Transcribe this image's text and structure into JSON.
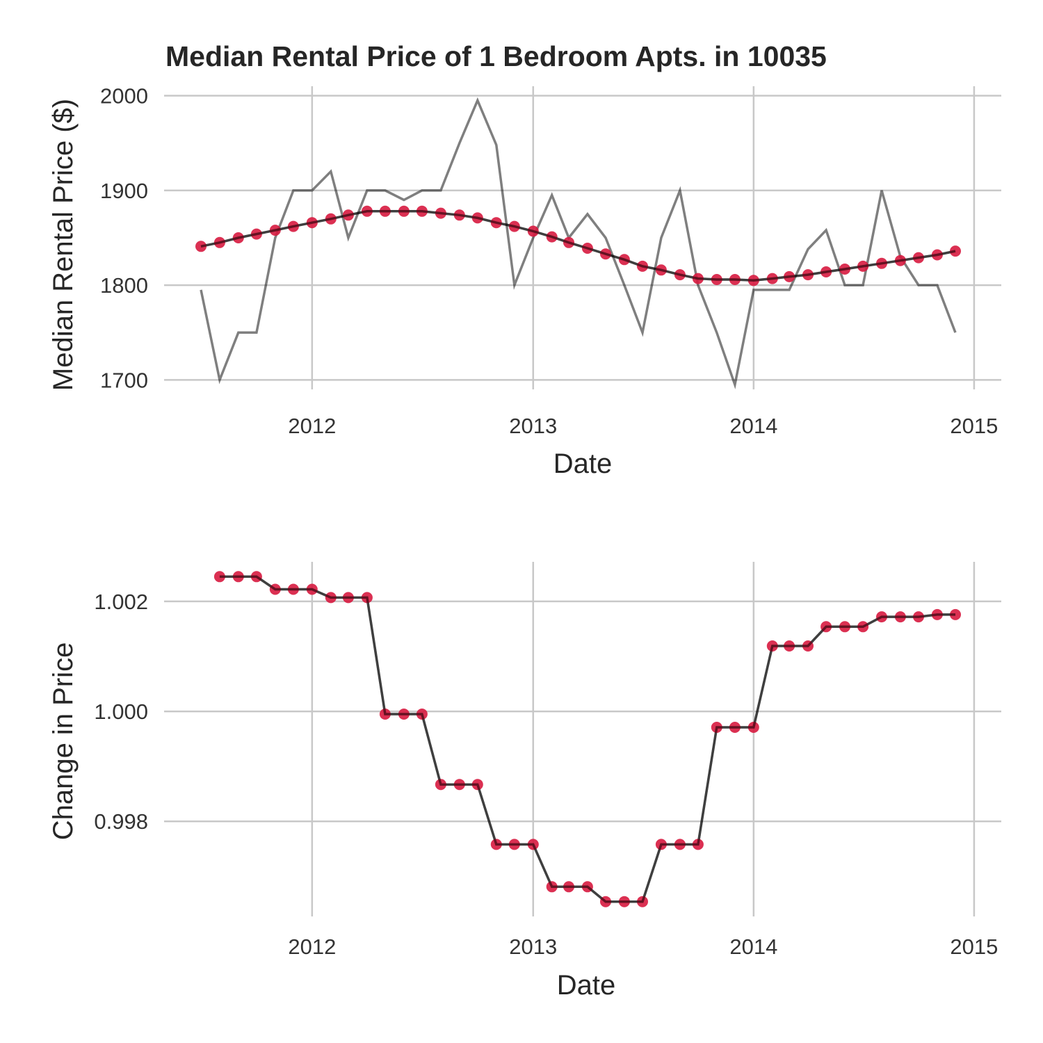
{
  "chart_data": [
    {
      "type": "line",
      "title": "Median Rental Price of 1 Bedroom Apts. in 10035",
      "xlabel": "Date",
      "ylabel": "Median Rental Price ($)",
      "x_ticks": [
        "2012",
        "2013",
        "2014",
        "2015"
      ],
      "y_ticks": [
        "1700",
        "1800",
        "1900",
        "2000"
      ],
      "xlim": [
        "2011-05-01",
        "2015-02-15"
      ],
      "ylim": [
        1690,
        2010
      ],
      "grid": true,
      "legend": "none",
      "series": [
        {
          "style": "line",
          "color": "#7f7f7f",
          "x": [
            "2011-07-01",
            "2011-08-01",
            "2011-09-01",
            "2011-10-01",
            "2011-11-01",
            "2011-12-01",
            "2012-01-01",
            "2012-02-01",
            "2012-03-01",
            "2012-04-01",
            "2012-05-01",
            "2012-06-01",
            "2012-07-01",
            "2012-08-01",
            "2012-09-01",
            "2012-10-01",
            "2012-11-01",
            "2012-12-01",
            "2013-01-01",
            "2013-02-01",
            "2013-03-01",
            "2013-04-01",
            "2013-05-01",
            "2013-06-01",
            "2013-07-01",
            "2013-08-01",
            "2013-09-01",
            "2013-10-01",
            "2013-11-01",
            "2013-12-01",
            "2014-01-01",
            "2014-02-01",
            "2014-03-01",
            "2014-04-01",
            "2014-05-01",
            "2014-06-01",
            "2014-07-01",
            "2014-08-01",
            "2014-09-01",
            "2014-10-01",
            "2014-11-01",
            "2014-12-01"
          ],
          "y": [
            1795,
            1700,
            1750,
            1750,
            1850,
            1900,
            1900,
            1920,
            1850,
            1900,
            1900,
            1890,
            1900,
            1900,
            1950,
            1995,
            1948,
            1800,
            1850,
            1895,
            1850,
            1875,
            1850,
            1800,
            1750,
            1850,
            1900,
            1800,
            1750,
            1695,
            1795,
            1795,
            1795,
            1838,
            1858,
            1800,
            1800,
            1900,
            1830,
            1800,
            1800,
            1750
          ]
        },
        {
          "style": "line+points",
          "color": "#d7193f",
          "x": [
            "2011-07-01",
            "2011-08-01",
            "2011-09-01",
            "2011-10-01",
            "2011-11-01",
            "2011-12-01",
            "2012-01-01",
            "2012-02-01",
            "2012-03-01",
            "2012-04-01",
            "2012-05-01",
            "2012-06-01",
            "2012-07-01",
            "2012-08-01",
            "2012-09-01",
            "2012-10-01",
            "2012-11-01",
            "2012-12-01",
            "2013-01-01",
            "2013-02-01",
            "2013-03-01",
            "2013-04-01",
            "2013-05-01",
            "2013-06-01",
            "2013-07-01",
            "2013-08-01",
            "2013-09-01",
            "2013-10-01",
            "2013-11-01",
            "2013-12-01",
            "2014-01-01",
            "2014-02-01",
            "2014-03-01",
            "2014-04-01",
            "2014-05-01",
            "2014-06-01",
            "2014-07-01",
            "2014-08-01",
            "2014-09-01",
            "2014-10-01",
            "2014-11-01",
            "2014-12-01"
          ],
          "y": [
            1841,
            1845,
            1850,
            1854,
            1858,
            1862,
            1866,
            1870,
            1874,
            1878,
            1878,
            1878,
            1878,
            1876,
            1874,
            1871,
            1866,
            1862,
            1857,
            1851,
            1845,
            1839,
            1833,
            1827,
            1820,
            1816,
            1811,
            1807,
            1806,
            1806,
            1805,
            1807,
            1809,
            1811,
            1814,
            1817,
            1820,
            1823,
            1826,
            1829,
            1832,
            1836
          ]
        }
      ]
    },
    {
      "type": "line",
      "title": "",
      "xlabel": "Date",
      "ylabel": "Change in Price",
      "x_ticks": [
        "2012",
        "2013",
        "2014",
        "2015"
      ],
      "y_ticks": [
        "0.998",
        "1.000",
        "1.002"
      ],
      "xlim": [
        "2011-05-01",
        "2015-02-15"
      ],
      "ylim": [
        0.99627,
        1.00272
      ],
      "grid": true,
      "legend": "none",
      "series": [
        {
          "style": "line+points",
          "color": "#d7193f",
          "x": [
            "2011-08-01",
            "2011-09-01",
            "2011-10-01",
            "2011-11-01",
            "2011-12-01",
            "2012-01-01",
            "2012-02-01",
            "2012-03-01",
            "2012-04-01",
            "2012-05-01",
            "2012-06-01",
            "2012-07-01",
            "2012-08-01",
            "2012-09-01",
            "2012-10-01",
            "2012-11-01",
            "2012-12-01",
            "2013-01-01",
            "2013-02-01",
            "2013-03-01",
            "2013-04-01",
            "2013-05-01",
            "2013-06-01",
            "2013-07-01",
            "2013-08-01",
            "2013-09-01",
            "2013-10-01",
            "2013-11-01",
            "2013-12-01",
            "2014-01-01",
            "2014-02-01",
            "2014-03-01",
            "2014-04-01",
            "2014-05-01",
            "2014-06-01",
            "2014-07-01",
            "2014-08-01",
            "2014-09-01",
            "2014-10-01",
            "2014-11-01",
            "2014-12-01"
          ],
          "y": [
            1.00245,
            1.00245,
            1.00245,
            1.00222,
            1.00222,
            1.00222,
            1.00207,
            1.00207,
            1.00207,
            0.99995,
            0.99995,
            0.99995,
            0.99867,
            0.99867,
            0.99867,
            0.99758,
            0.99758,
            0.99758,
            0.99681,
            0.99681,
            0.99681,
            0.99654,
            0.99654,
            0.99654,
            0.99758,
            0.99758,
            0.99758,
            0.99971,
            0.99971,
            0.99971,
            1.00119,
            1.00119,
            1.00119,
            1.00154,
            1.00154,
            1.00154,
            1.00172,
            1.00172,
            1.00172,
            1.00176,
            1.00176
          ]
        }
      ]
    }
  ]
}
